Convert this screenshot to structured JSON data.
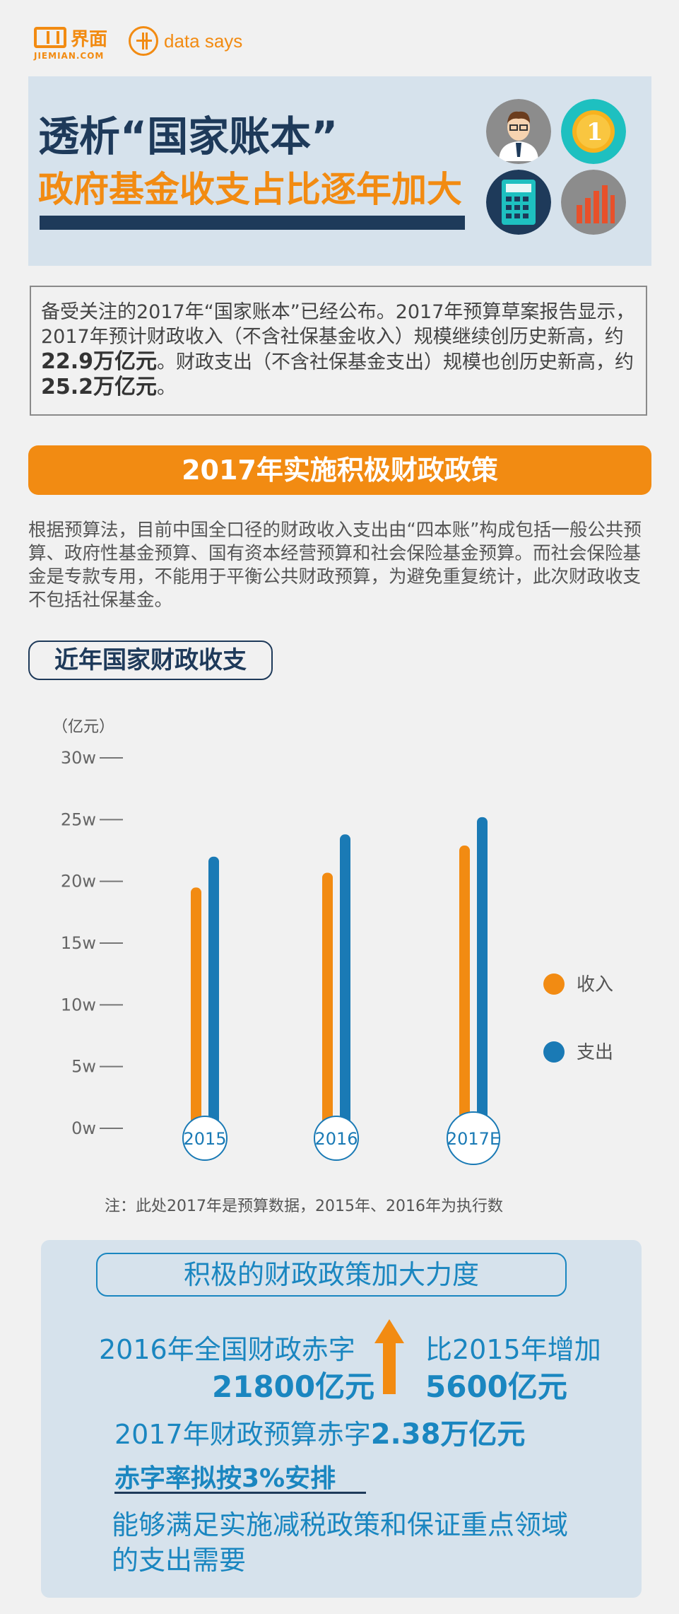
{
  "header": {
    "logo_cn": "界面",
    "logo_en": "JIEMIAN.COM",
    "data_says": "data says"
  },
  "title": {
    "line1": "透析“国家账本”",
    "line2": "政府基金收支占比逐年加大"
  },
  "intro": {
    "p1": "备受关注的2017年“国家账本”已经公布。2017年预算草案报告显示，2017年预计财政收入（不含社保基金收入）规模继续创历史新高，约",
    "v1": "22.9万亿元",
    "p2": "。财政支出（不含社保基金支出）规模也创历史新高，约",
    "v2": "25.2万亿元",
    "p3": "。"
  },
  "banner": "2017年实施积极财政政策",
  "paragraph": "根据预算法，目前中国全口径的财政收入支出由“四本账”构成包括一般公共预算、政府性基金预算、国有资本经营预算和社会保险基金预算。而社会保险基金是专款专用，不能用于平衡公共财政预算，为避免重复统计，此次财政收支不包括社保基金。",
  "section_title": "近年国家财政收支",
  "chart_data": {
    "type": "bar",
    "ylabel": "（亿元）",
    "yticks": [
      "30w",
      "25w",
      "20w",
      "15w",
      "10w",
      "5w",
      "0w"
    ],
    "ylim": [
      0,
      30
    ],
    "categories": [
      "2015",
      "2016",
      "2017E"
    ],
    "series": [
      {
        "name": "收入",
        "color": "#f28b12",
        "values": [
          19.5,
          20.7,
          22.9
        ]
      },
      {
        "name": "支出",
        "color": "#1a7ab5",
        "values": [
          22.0,
          23.8,
          25.2
        ]
      }
    ],
    "legend_position": "right"
  },
  "note": "注：此处2017年是预算数据，2015年、2016年为执行数",
  "panel": {
    "title": "积极的财政政策加大力度",
    "deficit_label": "2016年全国财政赤字",
    "deficit_value": "21800亿元",
    "increase_label": "比2015年增加",
    "increase_value": "5600亿元",
    "budget_label": "2017年财政预算赤字",
    "budget_value": "2.38万亿元",
    "rate": "赤字率拟按3%安排",
    "conclusion_1": "能够满足实施减税政策和保证重点领域",
    "conclusion_2": "的支出需要"
  },
  "colors": {
    "orange": "#f28b12",
    "navy": "#1e3a5a",
    "blue": "#1a86c0",
    "panel": "#d6e2ec"
  }
}
